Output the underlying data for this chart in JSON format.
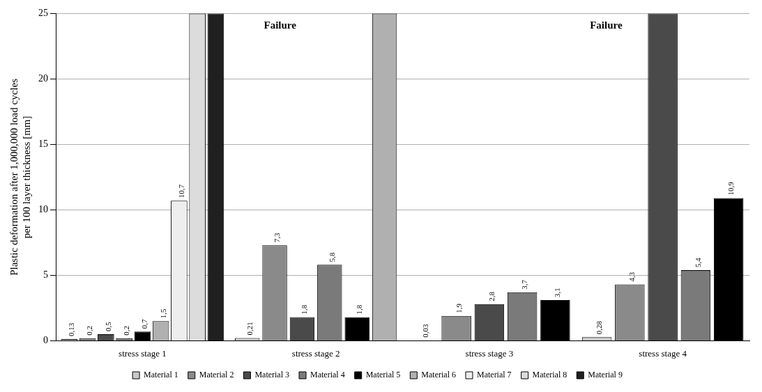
{
  "chart_data": {
    "type": "bar",
    "ylabel": "Plastic deformation after 1,000,000 load cycles\nper 100 layer thickness [mm]",
    "categories": [
      "stress stage 1",
      "stress stage 2",
      "stress stage 3",
      "stress stage 4"
    ],
    "series": [
      {
        "name": "Material 1",
        "color": "#c8c8c8",
        "values": [
          0.13,
          0.21,
          0.03,
          0.28
        ],
        "value_labels": [
          "0,13",
          "0,21",
          "0,03",
          "0,28"
        ]
      },
      {
        "name": "Material 2",
        "color": "#8a8a8a",
        "values": [
          0.2,
          7.3,
          1.9,
          4.3
        ],
        "value_labels": [
          "0,2",
          "7,3",
          "1,9",
          "4,3"
        ]
      },
      {
        "name": "Material 3",
        "color": "#4a4a4a",
        "values": [
          0.5,
          1.8,
          2.8,
          25
        ],
        "value_labels": [
          "0,5",
          "1,8",
          "2,8",
          null
        ]
      },
      {
        "name": "Material 4",
        "color": "#7a7a7a",
        "values": [
          0.2,
          5.8,
          3.7,
          5.4
        ],
        "value_labels": [
          "0,2",
          "5,8",
          "3,7",
          "5,4"
        ]
      },
      {
        "name": "Material 5",
        "color": "#000000",
        "values": [
          0.7,
          1.8,
          3.1,
          10.9
        ],
        "value_labels": [
          "0,7",
          "1,8",
          "3,1",
          "10,9"
        ]
      },
      {
        "name": "Material 6",
        "color": "#b0b0b0",
        "values": [
          1.5,
          25,
          null,
          null
        ],
        "value_labels": [
          "1,5",
          null,
          null,
          null
        ]
      },
      {
        "name": "Material 7",
        "color": "#eeeeee",
        "values": [
          10.7,
          null,
          null,
          null
        ],
        "value_labels": [
          "10,7",
          null,
          null,
          null
        ]
      },
      {
        "name": "Material 8",
        "color": "#dcdcdc",
        "values": [
          25,
          null,
          null,
          null
        ],
        "value_labels": [
          null,
          null,
          null,
          null
        ]
      },
      {
        "name": "Material 9",
        "color": "#202020",
        "values": [
          25,
          null,
          null,
          null
        ],
        "value_labels": [
          null,
          null,
          null,
          null
        ]
      }
    ],
    "ylim": [
      0,
      25
    ],
    "yticks": [
      0,
      5,
      10,
      15,
      20,
      25
    ],
    "grid": "y",
    "legend": "bottom",
    "annotations": [
      "Failure",
      "Failure"
    ]
  }
}
